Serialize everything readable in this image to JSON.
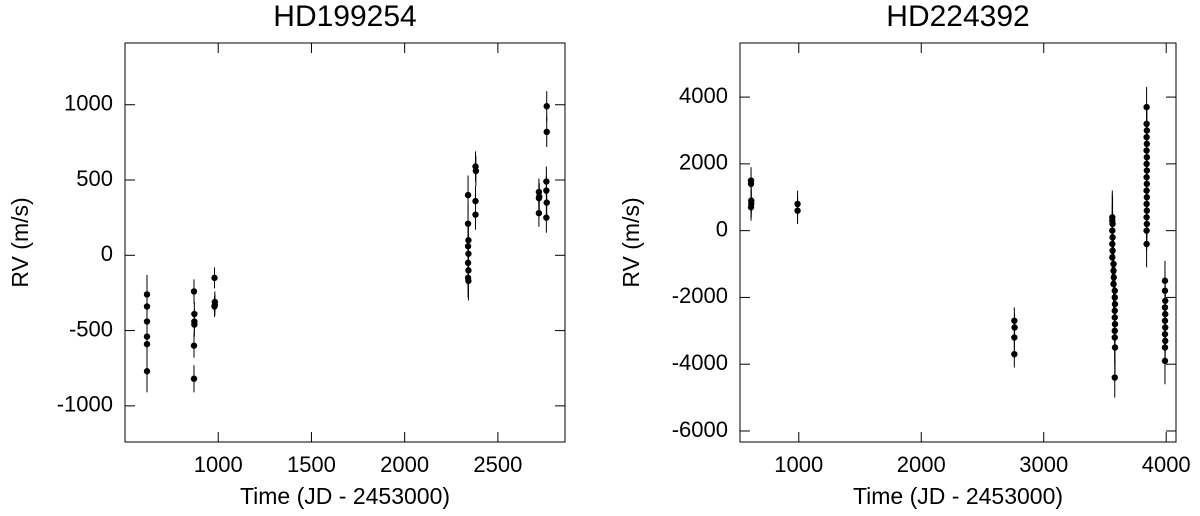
{
  "chart_data": [
    {
      "type": "scatter",
      "title": "HD199254",
      "x_label": "Time (JD - 2453000)",
      "y_label": "RV (m/s)",
      "color": "#000000",
      "xlim": [
        500,
        2860
      ],
      "ylim": [
        -1240,
        1410
      ],
      "xticks": [
        1000,
        1500,
        2000,
        2500
      ],
      "yticks": [
        -1000,
        -500,
        0,
        500,
        1000
      ],
      "x": [
        618,
        618,
        618,
        618,
        618,
        618,
        870,
        872,
        872,
        872,
        870,
        870,
        980,
        982,
        982,
        980,
        2340,
        2340,
        2342,
        2340,
        2342,
        2340,
        2342,
        2340,
        2342,
        2380,
        2382,
        2380,
        2380,
        2720,
        2722,
        2720,
        2720,
        2762,
        2762,
        2760,
        2760,
        2762,
        2760
      ],
      "values": [
        -260,
        -340,
        -440,
        -540,
        -590,
        -770,
        -240,
        -390,
        -440,
        -460,
        -600,
        -820,
        -150,
        -310,
        -330,
        -340,
        400,
        210,
        100,
        60,
        10,
        -50,
        -100,
        -150,
        -170,
        590,
        560,
        360,
        270,
        420,
        390,
        380,
        280,
        990,
        820,
        490,
        430,
        350,
        250
      ],
      "errors": [
        130,
        120,
        120,
        120,
        120,
        140,
        80,
        80,
        80,
        80,
        80,
        90,
        70,
        70,
        70,
        70,
        130,
        130,
        130,
        130,
        130,
        130,
        130,
        130,
        130,
        100,
        100,
        100,
        100,
        90,
        90,
        90,
        90,
        100,
        100,
        100,
        100,
        100,
        100
      ]
    },
    {
      "type": "scatter",
      "title": "HD224392",
      "x_label": "Time (JD - 2453000)",
      "y_label": "RV (m/s)",
      "color": "#000000",
      "xlim": [
        520,
        4080
      ],
      "ylim": [
        -6330,
        5620
      ],
      "xticks": [
        1000,
        2000,
        3000,
        4000
      ],
      "yticks": [
        -6000,
        -4000,
        -2000,
        0,
        2000,
        4000
      ],
      "x": [
        610,
        610,
        612,
        612,
        610,
        990,
        990,
        2760,
        2762,
        2760,
        2760,
        3560,
        3560,
        3562,
        3560,
        3562,
        3560,
        3562,
        3560,
        3570,
        3570,
        3572,
        3570,
        3580,
        3580,
        3582,
        3580,
        3580,
        3582,
        3580,
        3580,
        3582,
        3580,
        3840,
        3840,
        3842,
        3840,
        3842,
        3840,
        3842,
        3840,
        3842,
        3840,
        3842,
        3840,
        3842,
        3840,
        3842,
        3840,
        3842,
        3840,
        3840,
        3990,
        3990,
        3992,
        3990,
        3992,
        3990,
        3992,
        3990,
        3992,
        3990,
        3990
      ],
      "values": [
        1500,
        1400,
        900,
        800,
        700,
        800,
        600,
        -2700,
        -2900,
        -3200,
        -3700,
        400,
        300,
        200,
        0,
        -200,
        -400,
        -600,
        -800,
        -1000,
        -1200,
        -1400,
        -1600,
        -1800,
        -2000,
        -2200,
        -2400,
        -2600,
        -2800,
        -3000,
        -3200,
        -3500,
        -4400,
        3700,
        3200,
        3000,
        2800,
        2600,
        2400,
        2200,
        2000,
        1800,
        1600,
        1400,
        1200,
        1000,
        800,
        600,
        400,
        200,
        0,
        -400,
        -1500,
        -1800,
        -2100,
        -2300,
        -2500,
        -2700,
        -2900,
        -3100,
        -3300,
        -3500,
        -3900
      ],
      "errors": [
        400,
        400,
        400,
        400,
        400,
        400,
        400,
        400,
        400,
        400,
        400,
        800,
        800,
        800,
        800,
        800,
        800,
        800,
        800,
        800,
        800,
        800,
        800,
        800,
        800,
        800,
        800,
        800,
        800,
        800,
        800,
        800,
        600,
        600,
        600,
        600,
        600,
        600,
        600,
        600,
        600,
        600,
        600,
        600,
        600,
        600,
        600,
        600,
        600,
        600,
        600,
        700,
        600,
        600,
        600,
        600,
        600,
        600,
        600,
        600,
        600,
        600,
        700
      ]
    }
  ]
}
